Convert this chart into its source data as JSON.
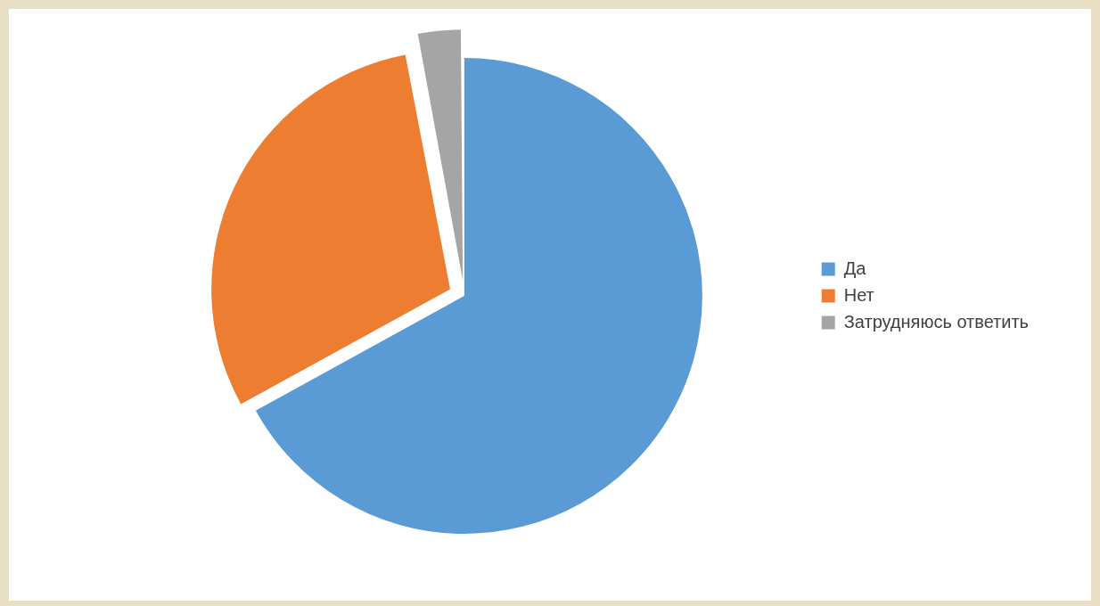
{
  "chart_data": {
    "type": "pie",
    "categories": [
      "Да",
      "Нет",
      "Затрудняюсь ответить"
    ],
    "values": [
      67,
      30,
      3
    ],
    "colors": [
      "#5b9bd5",
      "#ed7d31",
      "#a5a5a5"
    ],
    "legend": "right"
  }
}
